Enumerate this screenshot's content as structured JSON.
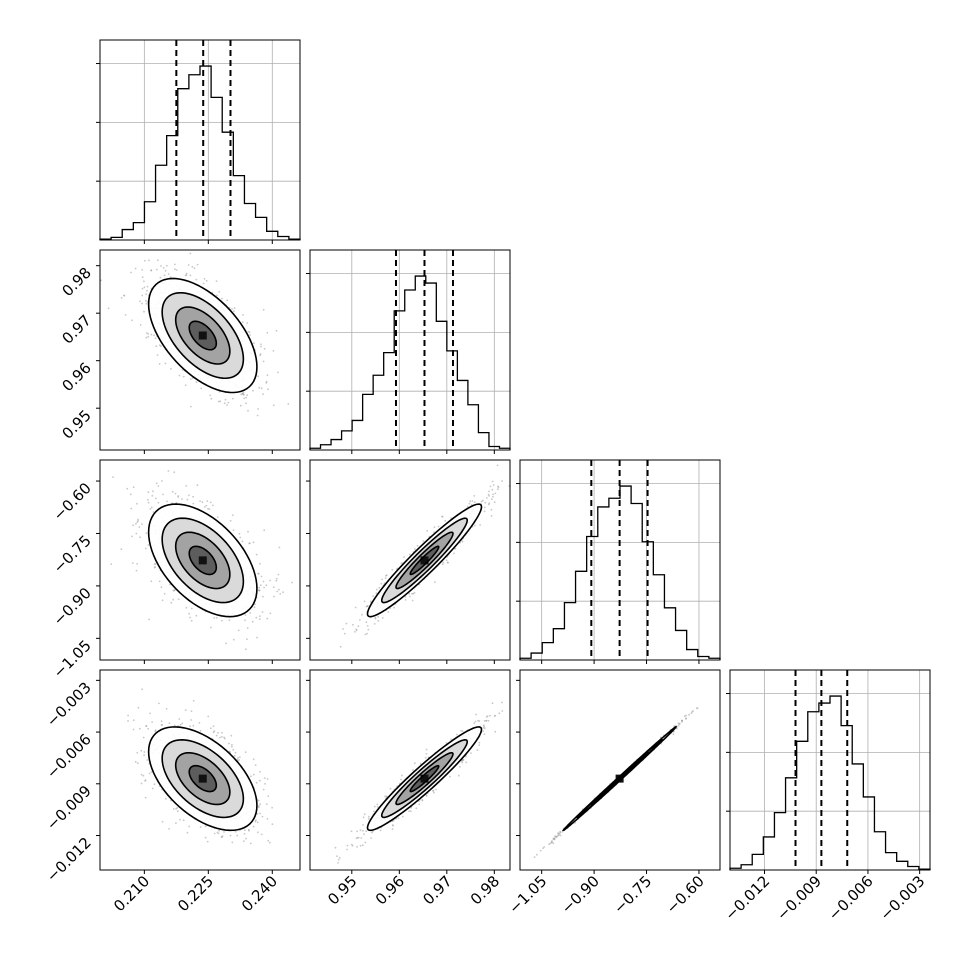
{
  "chart_data": {
    "type": "corner",
    "n_params": 4,
    "params": [
      {
        "range": [
          0.1996,
          0.2465
        ],
        "ticks": [
          0.21,
          0.225,
          0.24
        ],
        "tick_labels": [
          "0.210",
          "0.225",
          "0.240"
        ],
        "quantiles": [
          0.2175,
          0.2238,
          0.2302
        ],
        "hist_peak": 0.2235,
        "hist": [
          0.005,
          0.015,
          0.06,
          0.1,
          0.22,
          0.43,
          0.6,
          0.87,
          0.95,
          1.0,
          0.82,
          0.62,
          0.37,
          0.21,
          0.13,
          0.05,
          0.02,
          0.005
        ],
        "hist_ymax": 1.15
      },
      {
        "range": [
          0.9412,
          0.9833
        ],
        "ticks": [
          0.95,
          0.96,
          0.97,
          0.98
        ],
        "tick_labels": [
          "0.95",
          "0.96",
          "0.97",
          "0.98"
        ],
        "quantiles": [
          0.9593,
          0.9653,
          0.9713
        ],
        "hist_peak": 0.965,
        "hist": [
          0.01,
          0.03,
          0.06,
          0.11,
          0.17,
          0.32,
          0.43,
          0.56,
          0.8,
          0.92,
          1.0,
          0.96,
          0.74,
          0.57,
          0.4,
          0.26,
          0.1,
          0.02,
          0.01
        ],
        "hist_ymax": 1.15
      },
      {
        "range": [
          -1.112,
          -0.5398
        ],
        "ticks": [
          -1.05,
          -0.9,
          -0.75,
          -0.6
        ],
        "tick_labels": [
          "−1.05",
          "−0.90",
          "−0.75",
          "−0.60"
        ],
        "quantiles": [
          -0.908,
          -0.827,
          -0.747
        ],
        "hist_peak": -0.83,
        "hist": [
          0.01,
          0.04,
          0.1,
          0.18,
          0.33,
          0.51,
          0.71,
          0.88,
          0.93,
          1.0,
          0.9,
          0.68,
          0.49,
          0.3,
          0.17,
          0.06,
          0.02,
          0.01
        ],
        "hist_ymax": 1.15
      },
      {
        "range": [
          -0.014,
          -0.0024
        ],
        "ticks": [
          -0.012,
          -0.009,
          -0.006,
          -0.003
        ],
        "tick_labels": [
          "−0.012",
          "−0.009",
          "−0.006",
          "−0.003"
        ],
        "quantiles": [
          -0.0102,
          -0.0087,
          -0.0072
        ],
        "hist_peak": -0.0086,
        "hist": [
          0.01,
          0.03,
          0.09,
          0.19,
          0.33,
          0.53,
          0.74,
          0.91,
          0.96,
          1.0,
          0.83,
          0.61,
          0.42,
          0.22,
          0.1,
          0.05,
          0.02,
          0.005
        ],
        "hist_ymax": 1.15
      }
    ],
    "pairs": [
      {
        "row": 1,
        "col": 0,
        "mean": [
          0.2237,
          0.9653
        ],
        "corr": -0.55
      },
      {
        "row": 2,
        "col": 0,
        "mean": [
          0.2237,
          -0.827
        ],
        "corr": -0.5
      },
      {
        "row": 2,
        "col": 1,
        "mean": [
          0.9653,
          -0.827
        ],
        "corr": 0.95
      },
      {
        "row": 3,
        "col": 0,
        "mean": [
          0.2237,
          -0.0087
        ],
        "corr": -0.52
      },
      {
        "row": 3,
        "col": 1,
        "mean": [
          0.9653,
          -0.0087
        ],
        "corr": 0.95
      },
      {
        "row": 3,
        "col": 2,
        "mean": [
          -0.827,
          -0.0087
        ],
        "corr": 0.999
      }
    ],
    "contour_levels_sigma": [
      0.5,
      1.0,
      1.5,
      2.0
    ],
    "grid": true,
    "colors": {
      "line": "#000000",
      "grid": "#b0b0b0",
      "points": "#9a9a9a"
    }
  }
}
